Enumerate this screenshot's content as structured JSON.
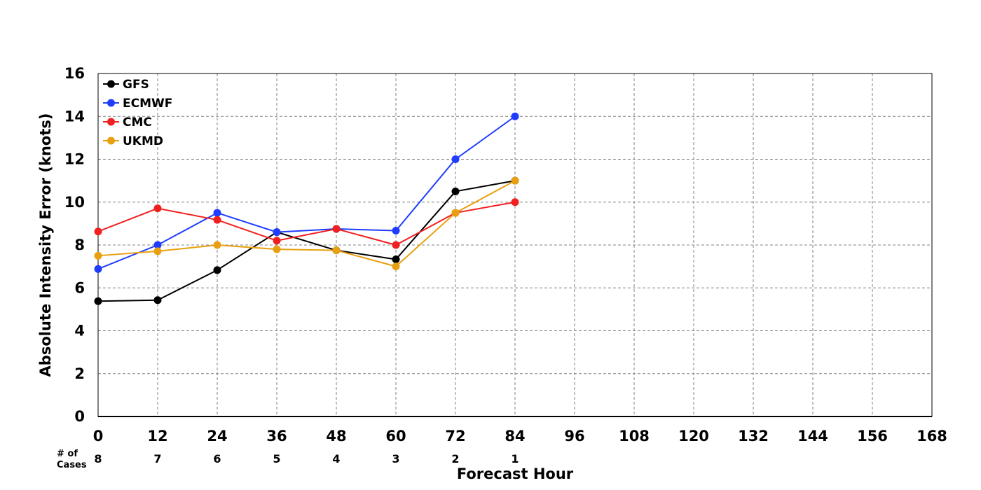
{
  "chart_data": {
    "type": "line",
    "title": "",
    "xlabel": "Forecast Hour",
    "ylabel": "Absolute Intensity Error (knots)",
    "xlim": [
      0,
      168
    ],
    "ylim": [
      0,
      16
    ],
    "xticks": [
      0,
      12,
      24,
      36,
      48,
      60,
      72,
      84,
      96,
      108,
      120,
      132,
      144,
      156,
      168
    ],
    "yticks": [
      0,
      2,
      4,
      6,
      8,
      10,
      12,
      14,
      16
    ],
    "grid": true,
    "legend_position": "top-left",
    "cases_label": [
      "# of",
      "Cases"
    ],
    "cases": [
      {
        "x": 0,
        "n": 8
      },
      {
        "x": 12,
        "n": 7
      },
      {
        "x": 24,
        "n": 6
      },
      {
        "x": 36,
        "n": 5
      },
      {
        "x": 48,
        "n": 4
      },
      {
        "x": 60,
        "n": 3
      },
      {
        "x": 72,
        "n": 2
      },
      {
        "x": 84,
        "n": 1
      }
    ],
    "x": [
      0,
      12,
      24,
      36,
      48,
      60,
      72,
      84
    ],
    "series": [
      {
        "name": "GFS",
        "color": "#000000",
        "values": [
          5.38,
          5.43,
          6.83,
          8.6,
          7.75,
          7.33,
          10.5,
          11.0
        ]
      },
      {
        "name": "ECMWF",
        "color": "#1f3cff",
        "values": [
          6.88,
          8.0,
          9.5,
          8.6,
          8.75,
          8.67,
          12.0,
          14.0
        ]
      },
      {
        "name": "CMC",
        "color": "#f02020",
        "values": [
          8.63,
          9.71,
          9.17,
          8.2,
          8.75,
          8.0,
          9.5,
          10.0
        ]
      },
      {
        "name": "UKMD",
        "color": "#e8a010",
        "values": [
          7.5,
          7.71,
          8.0,
          7.8,
          7.75,
          7.0,
          9.5,
          11.0
        ]
      }
    ]
  }
}
